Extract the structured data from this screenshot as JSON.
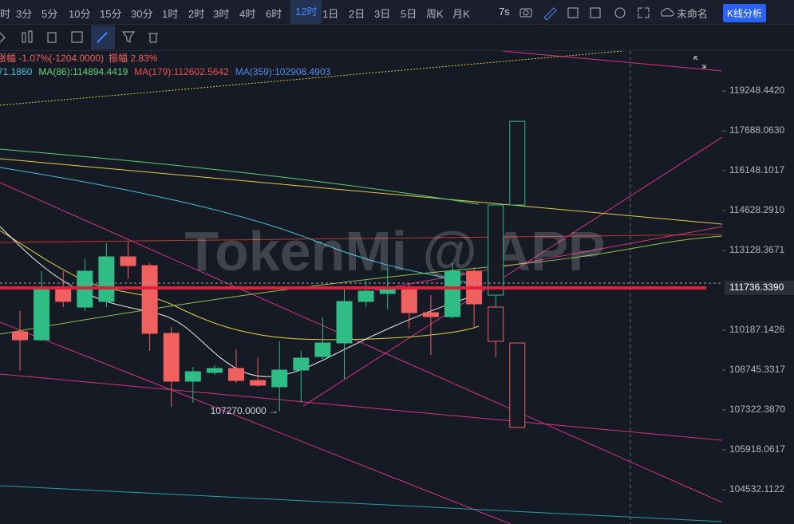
{
  "toolbar": {
    "intervals": [
      "时",
      "3分",
      "5分",
      "10分",
      "15分",
      "30分",
      "1时",
      "2时",
      "3时",
      "4时",
      "6时",
      "12时",
      "1日",
      "2日",
      "3日",
      "5日",
      "周K",
      "月K"
    ],
    "active": 11,
    "timer": "7s",
    "layout_name": "未命名",
    "analysis_button": "K线分析"
  },
  "info": {
    "change": "涨幅 -1.07%(-1204.0000)",
    "amplitude": "振幅 2.83%",
    "ma_lines": [
      {
        "text": "71.1860",
        "color": "#40c4d8"
      },
      {
        "text": "MA(86):114894.4419",
        "color": "#5ad17a"
      },
      {
        "text": "MA(179):112602.5642",
        "color": "#e8504f"
      },
      {
        "text": "MA(359):102908.4903",
        "color": "#4f8fe8"
      }
    ]
  },
  "watermark": "TokenMi @ APP",
  "chart_data": {
    "type": "candlestick",
    "log_scale": true,
    "up_color": "#2ebd85",
    "down_color": "#f0605e",
    "ylim": [
      103354,
      121053
    ],
    "yticks": [
      {
        "value": 119248.442,
        "label": "119248.4420"
      },
      {
        "value": 117688.063,
        "label": "117688.0630"
      },
      {
        "value": 116148.1017,
        "label": "116148.1017"
      },
      {
        "value": 114628.291,
        "label": "114628.2910"
      },
      {
        "value": 113128.3671,
        "label": "113128.3671"
      },
      {
        "value": 110187.1426,
        "label": "110187.1426"
      },
      {
        "value": 108745.3317,
        "label": "108745.3317"
      },
      {
        "value": 107322.387,
        "label": "107322.3870"
      },
      {
        "value": 105918.0617,
        "label": "105918.0617"
      },
      {
        "value": 104532.1122,
        "label": "104532.1122"
      }
    ],
    "current_price": {
      "value": 111736.339,
      "label": "111736.3390"
    },
    "annotation": "107270.0000 →",
    "categories": [
      null,
      null,
      null,
      null,
      null,
      null,
      null,
      null,
      null,
      null,
      null,
      null,
      null,
      null,
      null,
      null,
      null,
      null,
      null,
      null,
      null,
      null,
      null,
      null
    ],
    "series": [
      {
        "hollow": false,
        "values": [
          {
            "open": 110129,
            "high": 110885,
            "low": 108716,
            "close": 109838
          },
          {
            "open": 109838,
            "high": 112356,
            "low": 109781,
            "close": 111765
          },
          {
            "open": 111765,
            "high": 112356,
            "low": 111031,
            "close": 111237
          },
          {
            "open": 111031,
            "high": 112801,
            "low": 110885,
            "close": 112356
          },
          {
            "open": 111237,
            "high": 113397,
            "low": 111031,
            "close": 112890
          },
          {
            "open": 112890,
            "high": 113457,
            "low": 112060,
            "close": 112563
          },
          {
            "open": 112563,
            "high": 112653,
            "low": 109434,
            "close": 110071
          },
          {
            "open": 110071,
            "high": 110302,
            "low": 107435,
            "close": 108345
          },
          {
            "open": 108345,
            "high": 108859,
            "low": 107577,
            "close": 108688
          },
          {
            "open": 108660,
            "high": 108916,
            "low": 108573,
            "close": 108803
          },
          {
            "open": 108803,
            "high": 109492,
            "low": 108288,
            "close": 108373
          },
          {
            "open": 108373,
            "high": 109204,
            "low": 108145,
            "close": 108202
          },
          {
            "open": 108145,
            "high": 109781,
            "low": 107270,
            "close": 108745
          },
          {
            "open": 108745,
            "high": 109434,
            "low": 107577,
            "close": 109175
          },
          {
            "open": 109233,
            "high": 110652,
            "low": 109147,
            "close": 109723
          },
          {
            "open": 109723,
            "high": 111765,
            "low": 108430,
            "close": 111237
          },
          {
            "open": 111237,
            "high": 112001,
            "low": 111031,
            "close": 111618
          },
          {
            "open": 111530,
            "high": 112504,
            "low": 110944,
            "close": 111765
          },
          {
            "open": 111707,
            "high": 111913,
            "low": 110245,
            "close": 110827
          },
          {
            "open": 110827,
            "high": 111471,
            "low": 109290,
            "close": 110681
          },
          {
            "open": 110681,
            "high": 112653,
            "low": 110594,
            "close": 112356
          },
          {
            "open": 112356,
            "high": 112504,
            "low": 110302,
            "close": 111149
          },
          null,
          null
        ]
      },
      {
        "hollow": true,
        "values": [
          null,
          null,
          null,
          null,
          null,
          null,
          null,
          null,
          null,
          null,
          null,
          null,
          null,
          null,
          null,
          null,
          null,
          null,
          null,
          null,
          null,
          null,
          {
            "open": 111031,
            "high": 111031,
            "low": 109204,
            "close": 109781
          },
          {
            "open": 109723,
            "high": 109723,
            "low": 106703,
            "close": 106703
          }
        ]
      },
      {
        "hollow": true,
        "values": [
          null,
          null,
          null,
          null,
          null,
          null,
          null,
          null,
          null,
          null,
          null,
          null,
          null,
          null,
          null,
          null,
          null,
          null,
          null,
          null,
          null,
          null,
          {
            "open": 111471,
            "high": 114840,
            "low": 111031,
            "close": 114840
          },
          {
            "open": 114840,
            "high": 118058,
            "low": 114840,
            "close": 118058
          }
        ]
      }
    ]
  }
}
